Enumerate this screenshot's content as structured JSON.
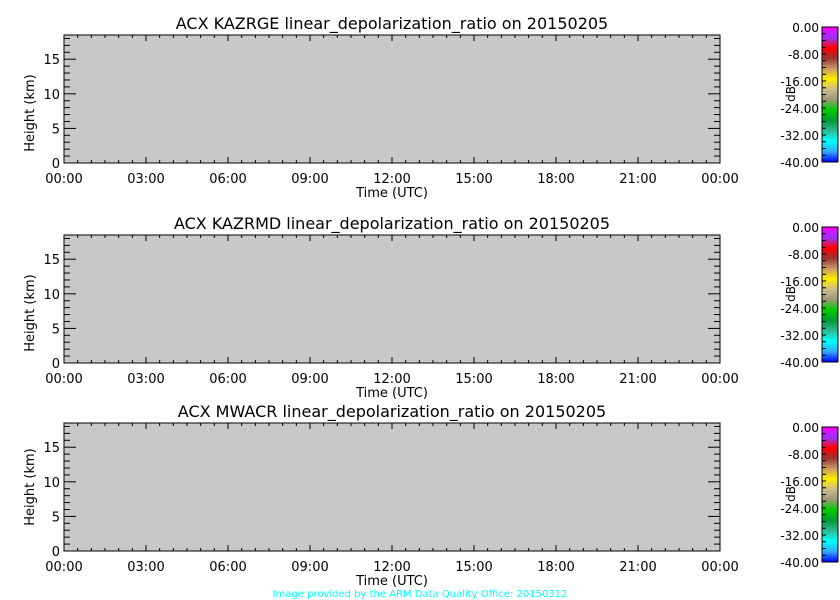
{
  "chart_data": [
    {
      "type": "heatmap",
      "title": "ACX KAZRGE linear_depolarization_ratio on 20150205",
      "xlabel": "Time (UTC)",
      "ylabel": "Height (km)",
      "x_tick_labels": [
        "00:00",
        "03:00",
        "06:00",
        "09:00",
        "12:00",
        "15:00",
        "18:00",
        "21:00",
        "00:00"
      ],
      "y_tick_labels": [
        "0",
        "5",
        "10",
        "15"
      ],
      "xlim_hours": [
        0,
        24
      ],
      "ylim": [
        0,
        18.5
      ],
      "values": [],
      "background_color": "#c8c8c8",
      "colorbar": {
        "label": "dB",
        "range": [
          -40,
          0
        ],
        "tick_labels": [
          "0.00",
          "-8.00",
          "-16.00",
          "-24.00",
          "-32.00",
          "-40.00"
        ]
      }
    },
    {
      "type": "heatmap",
      "title": "ACX KAZRMD linear_depolarization_ratio on 20150205",
      "xlabel": "Time (UTC)",
      "ylabel": "Height (km)",
      "x_tick_labels": [
        "00:00",
        "03:00",
        "06:00",
        "09:00",
        "12:00",
        "15:00",
        "18:00",
        "21:00",
        "00:00"
      ],
      "y_tick_labels": [
        "0",
        "5",
        "10",
        "15"
      ],
      "xlim_hours": [
        0,
        24
      ],
      "ylim": [
        0,
        18.5
      ],
      "values": [],
      "background_color": "#c8c8c8",
      "colorbar": {
        "label": "dB",
        "range": [
          -40,
          0
        ],
        "tick_labels": [
          "0.00",
          "-8.00",
          "-16.00",
          "-24.00",
          "-32.00",
          "-40.00"
        ]
      }
    },
    {
      "type": "heatmap",
      "title": "ACX MWACR linear_depolarization_ratio on 20150205",
      "xlabel": "Time (UTC)",
      "ylabel": "Height (km)",
      "x_tick_labels": [
        "00:00",
        "03:00",
        "06:00",
        "09:00",
        "12:00",
        "15:00",
        "18:00",
        "21:00",
        "00:00"
      ],
      "y_tick_labels": [
        "0",
        "5",
        "10",
        "15"
      ],
      "xlim_hours": [
        0,
        24
      ],
      "ylim": [
        0,
        18.5
      ],
      "values": [],
      "background_color": "#c8c8c8",
      "colorbar": {
        "label": "dB",
        "range": [
          -40,
          0
        ],
        "tick_labels": [
          "0.00",
          "-8.00",
          "-16.00",
          "-24.00",
          "-32.00",
          "-40.00"
        ]
      }
    }
  ],
  "colormap": [
    "#ff00ff",
    "#9933ff",
    "#ff0000",
    "#993333",
    "#cc9966",
    "#ffee00",
    "#ccbb88",
    "#999977",
    "#00cc00",
    "#009933",
    "#33bb99",
    "#00ffff",
    "#33aaff",
    "#0000ff"
  ],
  "footer": {
    "credit": "Image provided by the ARM Data Quality Office: 20150312",
    "color": "#00ffff"
  }
}
